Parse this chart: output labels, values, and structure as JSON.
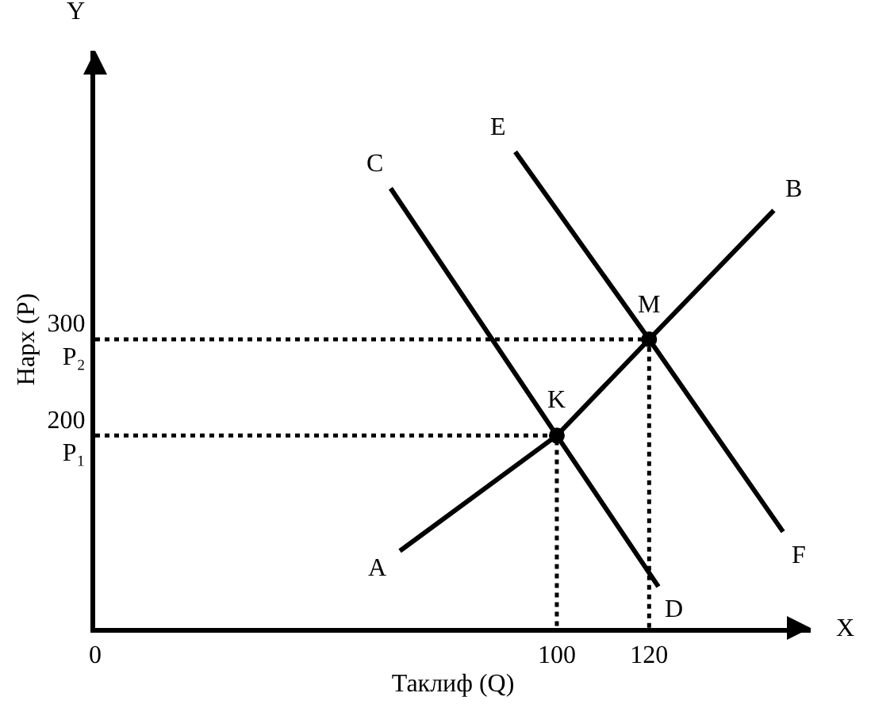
{
  "chart_data": {
    "type": "line",
    "xlabel": "Таклиф (Q)",
    "ylabel": "Нарх (P)",
    "xlim": [
      0,
      155
    ],
    "ylim": [
      0,
      600
    ],
    "xticks": [
      0,
      100,
      120
    ],
    "yticks": [
      {
        "value": 200,
        "label": "200\nP₁"
      },
      {
        "value": 300,
        "label": "300\nP₂"
      }
    ],
    "series": [
      {
        "color": "#000000",
        "line_style": "solid",
        "marker": "none",
        "x": [
          66,
          100,
          120,
          147
        ],
        "values": [
          80,
          200,
          300,
          434
        ]
      },
      {
        "color": "#000000",
        "line_style": "solid",
        "marker": "none",
        "x": [
          64,
          100,
          122
        ],
        "values": [
          457,
          200,
          43
        ]
      },
      {
        "color": "#000000",
        "line_style": "solid",
        "marker": "none",
        "x": [
          91,
          120,
          149
        ],
        "values": [
          495,
          300,
          100
        ]
      },
      {
        "color": "#000000",
        "line_style": "dotted",
        "marker": "none",
        "x": [
          0,
          120,
          120
        ],
        "values": [
          300,
          300,
          0
        ]
      },
      {
        "color": "#000000",
        "line_style": "dotted",
        "marker": "none",
        "x": [
          0,
          100,
          100
        ],
        "values": [
          200,
          200,
          0
        ]
      },
      {
        "type": "scatter",
        "color": "#000000",
        "marker": "circle",
        "x": [
          100,
          120
        ],
        "values": [
          200,
          300
        ]
      }
    ],
    "annotations": [
      {
        "text": "A",
        "x": 66,
        "y": 80
      },
      {
        "text": "B",
        "x": 147,
        "y": 434
      },
      {
        "text": "C",
        "x": 64,
        "y": 457
      },
      {
        "text": "D",
        "x": 122,
        "y": 43
      },
      {
        "text": "E",
        "x": 91,
        "y": 495
      },
      {
        "text": "F",
        "x": 149,
        "y": 100
      },
      {
        "text": "K",
        "x": 100,
        "y": 200
      },
      {
        "text": "M",
        "x": 120,
        "y": 300
      },
      "Y",
      "X"
    ]
  }
}
